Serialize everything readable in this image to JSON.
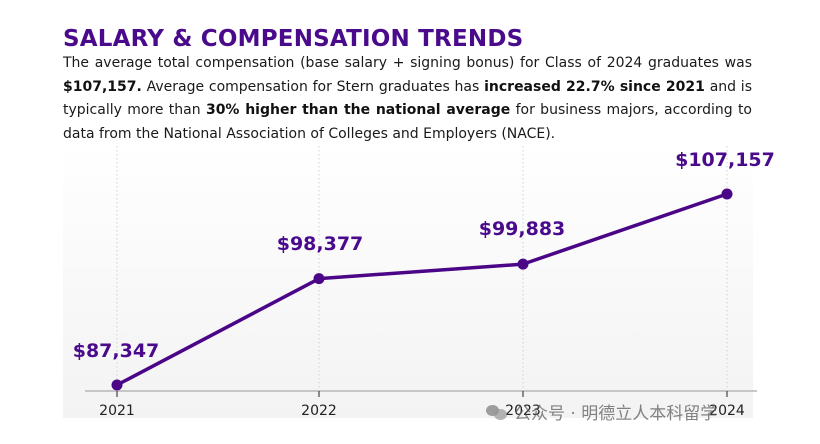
{
  "colors": {
    "accent": "#4a0a8c",
    "line": "#4b0688",
    "axis": "#b7b7b7",
    "grid": "#d2d2d2"
  },
  "header": {
    "title": "SALARY & COMPENSATION TRENDS"
  },
  "intro": {
    "p1": "The average total compensation (base salary + signing bonus) for Class of 2024 graduates was ",
    "b1": "$107,157.",
    "p2": " Average compensation for Stern graduates has ",
    "b2": "increased 22.7% since 2021",
    "p3": " and is typically more than ",
    "b3": "30% higher than the national average",
    "p4": " for business majors, according to data from the National Association of Colleges and Employers (NACE)."
  },
  "chart_data": {
    "type": "line",
    "x": [
      "2021",
      "2022",
      "2023",
      "2024"
    ],
    "values": [
      87347,
      98377,
      99883,
      107157
    ],
    "data_labels": [
      "$87,347",
      "$98,377",
      "$99,883",
      "$107,157"
    ],
    "title": "",
    "xlabel": "",
    "ylabel": "",
    "ylim": [
      87347,
      107157
    ],
    "grid": "vertical dotted",
    "legend": "none"
  },
  "watermark": {
    "text": "公众号 · 明德立人本科留学"
  }
}
